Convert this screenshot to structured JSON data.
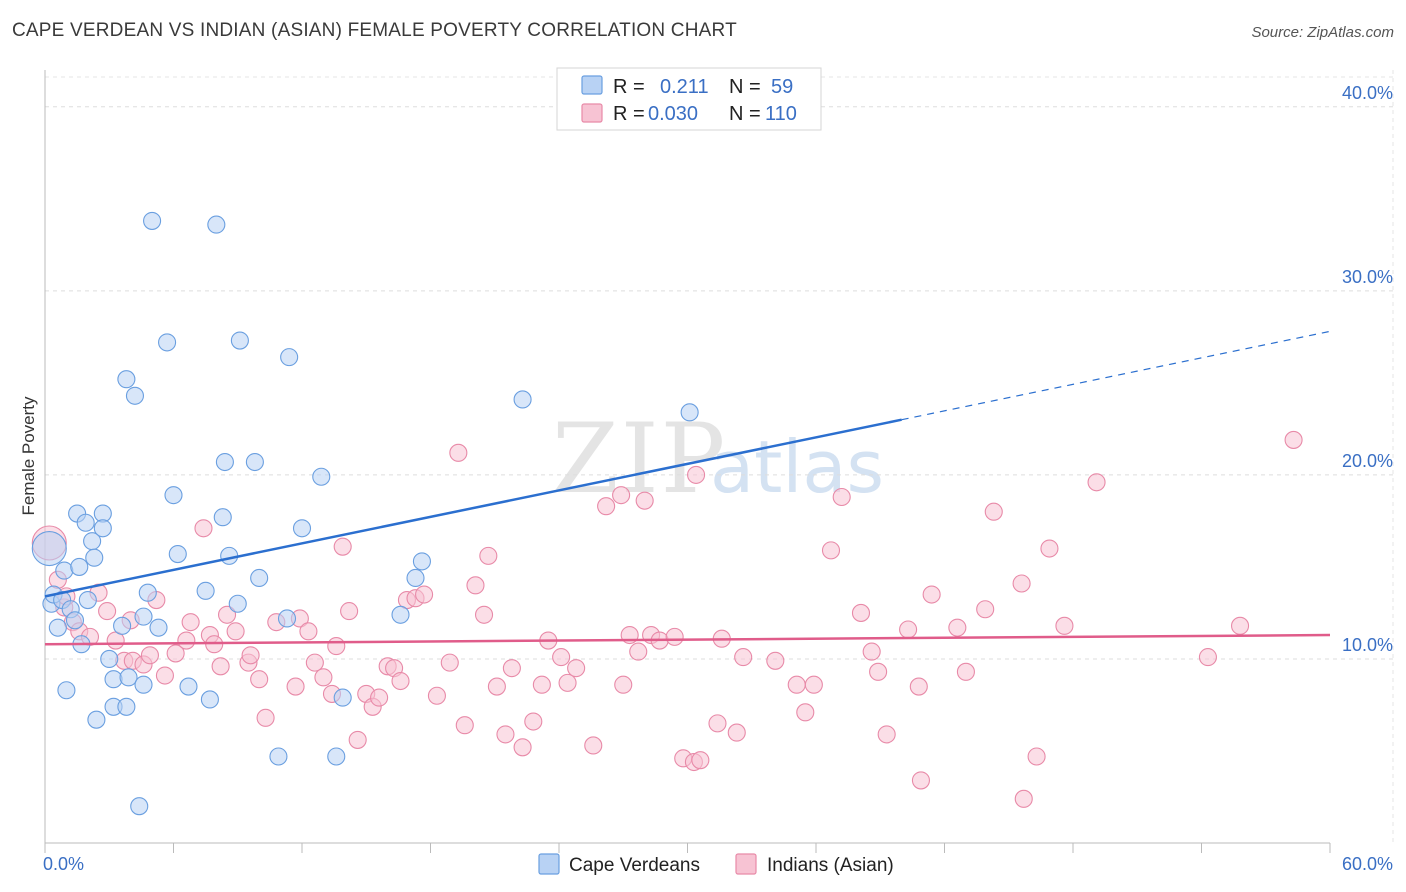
{
  "title": "CAPE VERDEAN VS INDIAN (ASIAN) FEMALE POVERTY CORRELATION CHART",
  "source": "Source: ZipAtlas.com",
  "colors": {
    "blue": "#6a9fe0",
    "blue_fill": "#b8d2f4",
    "blue_line": "#2b6fcf",
    "pink": "#e88aa8",
    "pink_fill": "#f7c3d3",
    "pink_line": "#e05c8a",
    "axis_text": "#3a6fc4"
  },
  "legend": {
    "rows": [
      {
        "r_label": "R =",
        "r_value": "0.211",
        "n_label": "N =",
        "n_value": "59"
      },
      {
        "r_label": "R =",
        "r_value": "0.030",
        "n_label": "N =",
        "n_value": "110"
      }
    ]
  },
  "bottom_legend": [
    "Cape Verdeans",
    "Indians (Asian)"
  ],
  "watermark": {
    "zip": "ZIP",
    "atlas": "atlas"
  },
  "chart_data": {
    "type": "scatter",
    "title": "CAPE VERDEAN VS INDIAN (ASIAN) FEMALE POVERTY CORRELATION CHART",
    "xlabel": "",
    "ylabel": "Female Poverty",
    "xlim": [
      0,
      60
    ],
    "ylim": [
      0,
      42
    ],
    "x_tick_labels": [
      "0.0%",
      "60.0%"
    ],
    "y_ticks": [
      10,
      20,
      30,
      40
    ],
    "y_tick_labels": [
      "10.0%",
      "20.0%",
      "30.0%",
      "40.0%"
    ],
    "grid": true,
    "series": [
      {
        "name": "Cape Verdeans",
        "r": 0.211,
        "n": 59,
        "trend": {
          "x0": 0,
          "y0": 13.4,
          "x1": 40,
          "y1": 23.0,
          "x_dash_end": 60,
          "y_dash_end": 27.8
        },
        "points": [
          [
            0.2,
            16.0
          ],
          [
            0.3,
            13.0
          ],
          [
            0.4,
            13.5
          ],
          [
            0.6,
            11.7
          ],
          [
            0.8,
            13.2
          ],
          [
            0.9,
            14.8
          ],
          [
            1.0,
            8.3
          ],
          [
            1.2,
            12.7
          ],
          [
            1.4,
            12.1
          ],
          [
            1.5,
            17.9
          ],
          [
            1.6,
            15.0
          ],
          [
            1.7,
            10.8
          ],
          [
            1.9,
            17.4
          ],
          [
            2.0,
            13.2
          ],
          [
            2.2,
            16.4
          ],
          [
            2.3,
            15.5
          ],
          [
            2.4,
            6.7
          ],
          [
            2.7,
            17.9
          ],
          [
            2.7,
            17.1
          ],
          [
            3.0,
            10.0
          ],
          [
            3.2,
            8.9
          ],
          [
            3.2,
            7.4
          ],
          [
            3.6,
            11.8
          ],
          [
            3.8,
            25.2
          ],
          [
            3.8,
            7.4
          ],
          [
            3.9,
            9.0
          ],
          [
            4.2,
            24.3
          ],
          [
            4.6,
            8.6
          ],
          [
            4.6,
            12.3
          ],
          [
            4.8,
            13.6
          ],
          [
            5.0,
            33.8
          ],
          [
            5.3,
            11.7
          ],
          [
            5.7,
            27.2
          ],
          [
            6.0,
            18.9
          ],
          [
            6.2,
            15.7
          ],
          [
            6.7,
            8.5
          ],
          [
            7.5,
            13.7
          ],
          [
            7.7,
            7.8
          ],
          [
            8.0,
            33.6
          ],
          [
            8.3,
            17.7
          ],
          [
            8.4,
            20.7
          ],
          [
            8.6,
            15.6
          ],
          [
            9.0,
            13.0
          ],
          [
            9.1,
            27.3
          ],
          [
            9.8,
            20.7
          ],
          [
            10.0,
            14.4
          ],
          [
            10.9,
            4.7
          ],
          [
            11.3,
            12.2
          ],
          [
            11.4,
            26.4
          ],
          [
            12.0,
            17.1
          ],
          [
            12.9,
            19.9
          ],
          [
            13.6,
            4.7
          ],
          [
            13.9,
            7.9
          ],
          [
            16.6,
            12.4
          ],
          [
            17.3,
            14.4
          ],
          [
            17.6,
            15.3
          ],
          [
            22.3,
            24.1
          ],
          [
            30.1,
            23.4
          ],
          [
            4.4,
            2.0
          ]
        ]
      },
      {
        "name": "Indians (Asian)",
        "r": 0.03,
        "n": 110,
        "trend": {
          "x0": 0,
          "y0": 10.8,
          "x1": 60,
          "y1": 11.3
        },
        "points": [
          [
            0.2,
            16.3
          ],
          [
            0.6,
            14.3
          ],
          [
            0.9,
            12.8
          ],
          [
            1.3,
            12.0
          ],
          [
            1.6,
            11.5
          ],
          [
            2.1,
            11.2
          ],
          [
            2.5,
            13.6
          ],
          [
            2.9,
            12.6
          ],
          [
            3.3,
            11.0
          ],
          [
            3.7,
            9.9
          ],
          [
            4.1,
            9.9
          ],
          [
            4.0,
            12.1
          ],
          [
            4.6,
            9.7
          ],
          [
            4.9,
            10.2
          ],
          [
            5.2,
            13.2
          ],
          [
            5.6,
            9.1
          ],
          [
            6.1,
            10.3
          ],
          [
            6.6,
            11.0
          ],
          [
            6.8,
            12.0
          ],
          [
            7.4,
            17.1
          ],
          [
            7.7,
            11.3
          ],
          [
            7.9,
            10.8
          ],
          [
            8.2,
            9.6
          ],
          [
            8.5,
            12.4
          ],
          [
            8.9,
            11.5
          ],
          [
            9.5,
            9.8
          ],
          [
            9.6,
            10.2
          ],
          [
            10.0,
            8.9
          ],
          [
            10.3,
            6.8
          ],
          [
            10.8,
            12.0
          ],
          [
            11.7,
            8.5
          ],
          [
            11.9,
            12.2
          ],
          [
            12.3,
            11.5
          ],
          [
            12.6,
            9.8
          ],
          [
            13.0,
            9.0
          ],
          [
            13.4,
            8.1
          ],
          [
            13.6,
            10.7
          ],
          [
            13.9,
            16.1
          ],
          [
            14.2,
            12.6
          ],
          [
            14.6,
            5.6
          ],
          [
            15.0,
            8.1
          ],
          [
            15.3,
            7.4
          ],
          [
            15.6,
            7.9
          ],
          [
            16.0,
            9.6
          ],
          [
            16.3,
            9.5
          ],
          [
            16.6,
            8.8
          ],
          [
            16.9,
            13.2
          ],
          [
            17.3,
            13.3
          ],
          [
            17.7,
            13.5
          ],
          [
            18.3,
            8.0
          ],
          [
            18.9,
            9.8
          ],
          [
            19.3,
            21.2
          ],
          [
            19.6,
            6.4
          ],
          [
            20.1,
            14.0
          ],
          [
            20.5,
            12.4
          ],
          [
            20.7,
            15.6
          ],
          [
            21.1,
            8.5
          ],
          [
            21.5,
            5.9
          ],
          [
            21.8,
            9.5
          ],
          [
            22.3,
            5.2
          ],
          [
            22.8,
            6.6
          ],
          [
            23.2,
            8.6
          ],
          [
            23.5,
            11.0
          ],
          [
            24.1,
            10.1
          ],
          [
            24.4,
            8.7
          ],
          [
            24.8,
            9.5
          ],
          [
            25.6,
            5.3
          ],
          [
            26.2,
            18.3
          ],
          [
            26.9,
            18.9
          ],
          [
            27.0,
            8.6
          ],
          [
            27.3,
            11.3
          ],
          [
            27.7,
            10.4
          ],
          [
            28.0,
            18.6
          ],
          [
            28.3,
            11.3
          ],
          [
            28.7,
            11.0
          ],
          [
            29.4,
            11.2
          ],
          [
            29.8,
            4.6
          ],
          [
            30.3,
            4.4
          ],
          [
            30.6,
            4.5
          ],
          [
            30.4,
            20.0
          ],
          [
            31.4,
            6.5
          ],
          [
            31.6,
            11.1
          ],
          [
            32.3,
            6.0
          ],
          [
            32.6,
            10.1
          ],
          [
            34.1,
            9.9
          ],
          [
            35.1,
            8.6
          ],
          [
            35.5,
            7.1
          ],
          [
            35.9,
            8.6
          ],
          [
            36.7,
            15.9
          ],
          [
            37.2,
            18.8
          ],
          [
            38.1,
            12.5
          ],
          [
            38.6,
            10.4
          ],
          [
            38.9,
            9.3
          ],
          [
            39.3,
            5.9
          ],
          [
            40.3,
            11.6
          ],
          [
            40.8,
            8.5
          ],
          [
            41.4,
            13.5
          ],
          [
            40.9,
            3.4
          ],
          [
            42.6,
            11.7
          ],
          [
            43.0,
            9.3
          ],
          [
            43.9,
            12.7
          ],
          [
            44.3,
            18.0
          ],
          [
            45.6,
            14.1
          ],
          [
            46.9,
            16.0
          ],
          [
            47.6,
            11.8
          ],
          [
            46.3,
            4.7
          ],
          [
            45.7,
            2.4
          ],
          [
            49.1,
            19.6
          ],
          [
            54.3,
            10.1
          ],
          [
            55.8,
            11.8
          ],
          [
            58.3,
            21.9
          ],
          [
            1.0,
            13.4
          ]
        ]
      }
    ]
  }
}
